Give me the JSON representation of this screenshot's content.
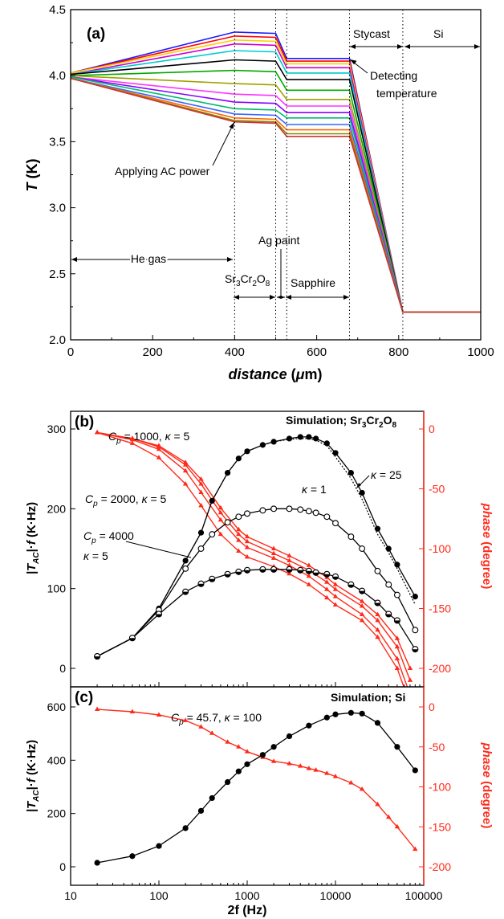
{
  "colors": {
    "axis": "#000000",
    "phase": "#ff2a1a",
    "black": "#000000"
  },
  "chart_data": [
    {
      "id": "a",
      "type": "line",
      "panel_label": "(a)",
      "xlabel_italic": "distance",
      "xlabel_unit_open": " (",
      "xlabel_mu": "μ",
      "xlabel_unit_close": "m)",
      "ylabel_var": "T",
      "ylabel_unit": " (K)",
      "xlim": [
        0,
        1000
      ],
      "ylim": [
        2.0,
        4.5
      ],
      "xticks": [
        0,
        200,
        400,
        600,
        800,
        1000
      ],
      "yticks": [
        2.0,
        2.5,
        3.0,
        3.5,
        4.0,
        4.5
      ],
      "ytick_labels": [
        "2.0",
        "2.5",
        "3.0",
        "3.5",
        "4.0",
        "4.5"
      ],
      "boundaries": [
        400,
        500,
        527,
        680,
        810
      ],
      "region_labels": {
        "he_gas": "He gas",
        "sample_main": "Sr",
        "sample_sub1": "3",
        "sample_mid": "Cr",
        "sample_sub2": "2",
        "sample_end": "O",
        "sample_sub3": "8",
        "ag_paint": "Ag paint",
        "sapphire": "Sapphire",
        "stycast": "Stycast",
        "si": "Si"
      },
      "annotations": {
        "applying": "Applying AC power",
        "detecting_1": "Detecting",
        "detecting_2": "temperature"
      },
      "x": [
        0,
        400,
        500,
        527,
        680,
        810,
        1000
      ],
      "series": [
        {
          "color": "#1a1aff",
          "y": [
            4.02,
            4.33,
            4.32,
            4.13,
            4.13,
            2.21,
            2.21
          ]
        },
        {
          "color": "#ff0000",
          "y": [
            4.02,
            4.3,
            4.29,
            4.11,
            4.11,
            2.21,
            2.21
          ]
        },
        {
          "color": "#ffcc00",
          "y": [
            4.02,
            4.27,
            4.26,
            4.09,
            4.09,
            2.21,
            2.21
          ]
        },
        {
          "color": "#cc00cc",
          "y": [
            4.01,
            4.24,
            4.23,
            4.06,
            4.06,
            2.21,
            2.21
          ]
        },
        {
          "color": "#00cccc",
          "y": [
            4.01,
            4.19,
            4.18,
            4.02,
            4.02,
            2.21,
            2.21
          ]
        },
        {
          "color": "#000000",
          "y": [
            4.01,
            4.12,
            4.11,
            3.97,
            3.97,
            2.21,
            2.21
          ]
        },
        {
          "color": "#00aa00",
          "y": [
            4.0,
            4.04,
            4.03,
            3.89,
            3.89,
            2.21,
            2.21
          ]
        },
        {
          "color": "#a0a000",
          "y": [
            4.0,
            3.94,
            3.93,
            3.82,
            3.82,
            2.21,
            2.21
          ]
        },
        {
          "color": "#ff33ff",
          "y": [
            3.99,
            3.86,
            3.85,
            3.77,
            3.77,
            2.21,
            2.21
          ]
        },
        {
          "color": "#8800ff",
          "y": [
            3.99,
            3.8,
            3.79,
            3.72,
            3.72,
            2.21,
            2.21
          ]
        },
        {
          "color": "#00bb66",
          "y": [
            3.99,
            3.75,
            3.74,
            3.68,
            3.68,
            2.21,
            2.21
          ]
        },
        {
          "color": "#3366ff",
          "y": [
            3.98,
            3.71,
            3.7,
            3.63,
            3.63,
            2.21,
            2.21
          ]
        },
        {
          "color": "#ff6600",
          "y": [
            3.98,
            3.68,
            3.67,
            3.59,
            3.59,
            2.21,
            2.21
          ]
        },
        {
          "color": "#888800",
          "y": [
            3.98,
            3.66,
            3.65,
            3.56,
            3.56,
            2.21,
            2.21
          ]
        },
        {
          "color": "#cc3333",
          "y": [
            3.98,
            3.65,
            3.64,
            3.54,
            3.54,
            2.21,
            2.21
          ]
        }
      ]
    },
    {
      "id": "b",
      "type": "line",
      "panel_label": "(b)",
      "title_main": "Simulation; Sr",
      "title_sub1": "3",
      "title_mid": "Cr",
      "title_sub2": "2",
      "title_end": "O",
      "title_sub3": "8",
      "xscale": "log",
      "xlim": [
        10,
        100000
      ],
      "ylim": [
        0,
        300
      ],
      "y2lim": [
        -200,
        0
      ],
      "yticks": [
        0,
        100,
        200,
        300
      ],
      "y2ticks": [
        0,
        -50,
        -100,
        -150,
        -200
      ],
      "ylabel_1": "|T",
      "ylabel_sub": "AC",
      "ylabel_2": "|·",
      "ylabel_f": "f",
      "ylabel_unit": "  (K·Hz)",
      "y2label_var": "phase",
      "y2label_unit": " (degree)",
      "labels": {
        "l1_cp": "C",
        "l1_p": "p",
        "l1_rest": " = 1000, ",
        "l1_kappa": "κ",
        "l1_k": " = 5",
        "l2_cp": "C",
        "l2_p": "p",
        "l2_rest": " = 2000, ",
        "l2_kappa": "κ",
        "l2_k": " = 5",
        "l3_cp": "C",
        "l3_p": "p",
        "l3_rest": " = 4000",
        "l4_kappa": "κ",
        "l4_k": " = 5",
        "k25_kappa": "κ",
        "k25_k": " = 25",
        "k1_kappa": "κ",
        "k1_k": " = 1"
      },
      "x": [
        20,
        50,
        100,
        200,
        300,
        400,
        600,
        800,
        1000,
        1500,
        2000,
        3000,
        4000,
        5000,
        6000,
        8000,
        10000,
        15000,
        20000,
        30000,
        40000,
        50000,
        80000
      ],
      "amp_series": [
        {
          "marker": "filled",
          "y": [
            15,
            38,
            75,
            135,
            170,
            210,
            245,
            263,
            272,
            280,
            284,
            288,
            290,
            290,
            288,
            282,
            270,
            245,
            220,
            175,
            150,
            130,
            90
          ]
        },
        {
          "marker": "open",
          "y": [
            15,
            38,
            73,
            125,
            150,
            168,
            183,
            190,
            194,
            198,
            200,
            200,
            199,
            197,
            195,
            190,
            182,
            165,
            150,
            122,
            105,
            92,
            48
          ]
        },
        {
          "marker": "half",
          "y": [
            15,
            38,
            68,
            96,
            106,
            112,
            118,
            121,
            123,
            124,
            124,
            124,
            123,
            122,
            120,
            118,
            115,
            105,
            97,
            82,
            68,
            60,
            24
          ]
        }
      ],
      "dotted_series": {
        "x": [
          20,
          50,
          100,
          200,
          300,
          400,
          600,
          800,
          1000,
          1500,
          2000,
          3000,
          4000,
          5000,
          6000,
          8000,
          10000,
          15000,
          20000,
          30000,
          40000,
          50000,
          80000
        ],
        "y": [
          15,
          38,
          75,
          135,
          170,
          210,
          245,
          263,
          272,
          280,
          284,
          287,
          288,
          288,
          286,
          279,
          265,
          238,
          212,
          168,
          145,
          125,
          80
        ]
      },
      "phase_x": [
        20,
        50,
        100,
        200,
        300,
        500,
        800,
        1000,
        2000,
        3000,
        5000,
        8000,
        10000,
        20000,
        30000,
        50000,
        70000
      ],
      "phase_series": [
        {
          "y": [
            -3,
            -8,
            -14,
            -28,
            -42,
            -66,
            -84,
            -90,
            -100,
            -106,
            -114,
            -124,
            -130,
            -144,
            -155,
            -175,
            -200
          ]
        },
        {
          "y": [
            -3,
            -8,
            -15,
            -30,
            -46,
            -70,
            -88,
            -94,
            -104,
            -110,
            -118,
            -128,
            -134,
            -148,
            -160,
            -182,
            -210
          ]
        },
        {
          "y": [
            -3,
            -9,
            -17,
            -35,
            -53,
            -76,
            -93,
            -99,
            -108,
            -114,
            -123,
            -134,
            -140,
            -155,
            -168,
            -192,
            -222
          ]
        },
        {
          "y": [
            -3,
            -12,
            -24,
            -46,
            -64,
            -88,
            -102,
            -107,
            -115,
            -121,
            -130,
            -141,
            -147,
            -160,
            -174,
            -200,
            -230
          ]
        }
      ]
    },
    {
      "id": "c",
      "type": "line",
      "panel_label": "(c)",
      "title": "Simulation; Si",
      "xscale": "log",
      "xlim": [
        10,
        100000
      ],
      "ylim": [
        0,
        600
      ],
      "y2lim": [
        -200,
        0
      ],
      "yticks": [
        0,
        200,
        400,
        600
      ],
      "y2ticks": [
        0,
        -50,
        -100,
        -150,
        -200
      ],
      "xticks": [
        10,
        100,
        1000,
        10000,
        100000
      ],
      "xtick_labels": [
        "10",
        "100",
        "1000",
        "10000",
        "100000"
      ],
      "xlabel": "2f (Hz)",
      "ylabel_1": "|T",
      "ylabel_sub": "AC",
      "ylabel_2": "|·",
      "ylabel_f": "f",
      "ylabel_unit": "  (K·Hz)",
      "y2label_var": "phase",
      "y2label_unit": " (degree)",
      "label_cp": "C",
      "label_p": "p",
      "label_rest": " = 45.7, ",
      "label_kappa": "κ",
      "label_k": " = 100",
      "amp_x": [
        20,
        50,
        100,
        200,
        300,
        400,
        600,
        800,
        1000,
        1500,
        2000,
        3000,
        5000,
        8000,
        10000,
        15000,
        20000,
        30000,
        50000,
        80000
      ],
      "amp_y": [
        15,
        40,
        78,
        145,
        210,
        258,
        318,
        358,
        385,
        420,
        450,
        490,
        530,
        560,
        572,
        578,
        575,
        540,
        450,
        362
      ],
      "phase_x": [
        20,
        50,
        100,
        200,
        300,
        400,
        600,
        800,
        1000,
        1500,
        2000,
        3000,
        4000,
        5000,
        6000,
        8000,
        10000,
        15000,
        20000,
        30000,
        40000,
        50000,
        80000
      ],
      "phase_y": [
        -3,
        -6,
        -10,
        -17,
        -25,
        -33,
        -44,
        -50,
        -56,
        -63,
        -68,
        -71,
        -74,
        -77,
        -79,
        -83,
        -87,
        -95,
        -103,
        -122,
        -138,
        -150,
        -178
      ]
    }
  ]
}
